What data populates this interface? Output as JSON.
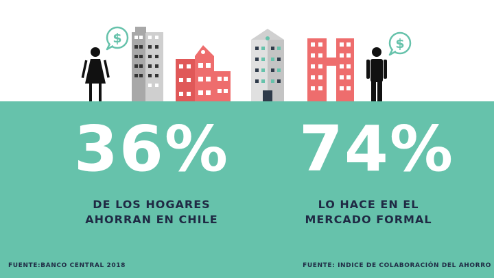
{
  "left_stat": {
    "value": "36%",
    "caption_line1": "DE LOS HOGARES",
    "caption_line2": "AHORRAN EN CHILE"
  },
  "right_stat": {
    "value": "74%",
    "caption_line1": "LO HACE EN EL",
    "caption_line2": "MERCADO FORMAL"
  },
  "sources": {
    "left": "FUENTE:BANCO CENTRAL 2018",
    "right": "FUENTE: INDICE DE COLABORACIÓN DEL AHORRO"
  },
  "speech_bubbles": {
    "left_symbol": "$",
    "right_symbol": "$"
  },
  "colors": {
    "band": "#66c2ab",
    "building_red": "#ee6d6d",
    "building_gray": "#bdbdbd",
    "text_dark": "#1f2a44",
    "bubble_green": "#66c2ab"
  },
  "icons": [
    "woman-icon",
    "man-icon",
    "speech-bubble-dollar-icon",
    "building-icon"
  ]
}
